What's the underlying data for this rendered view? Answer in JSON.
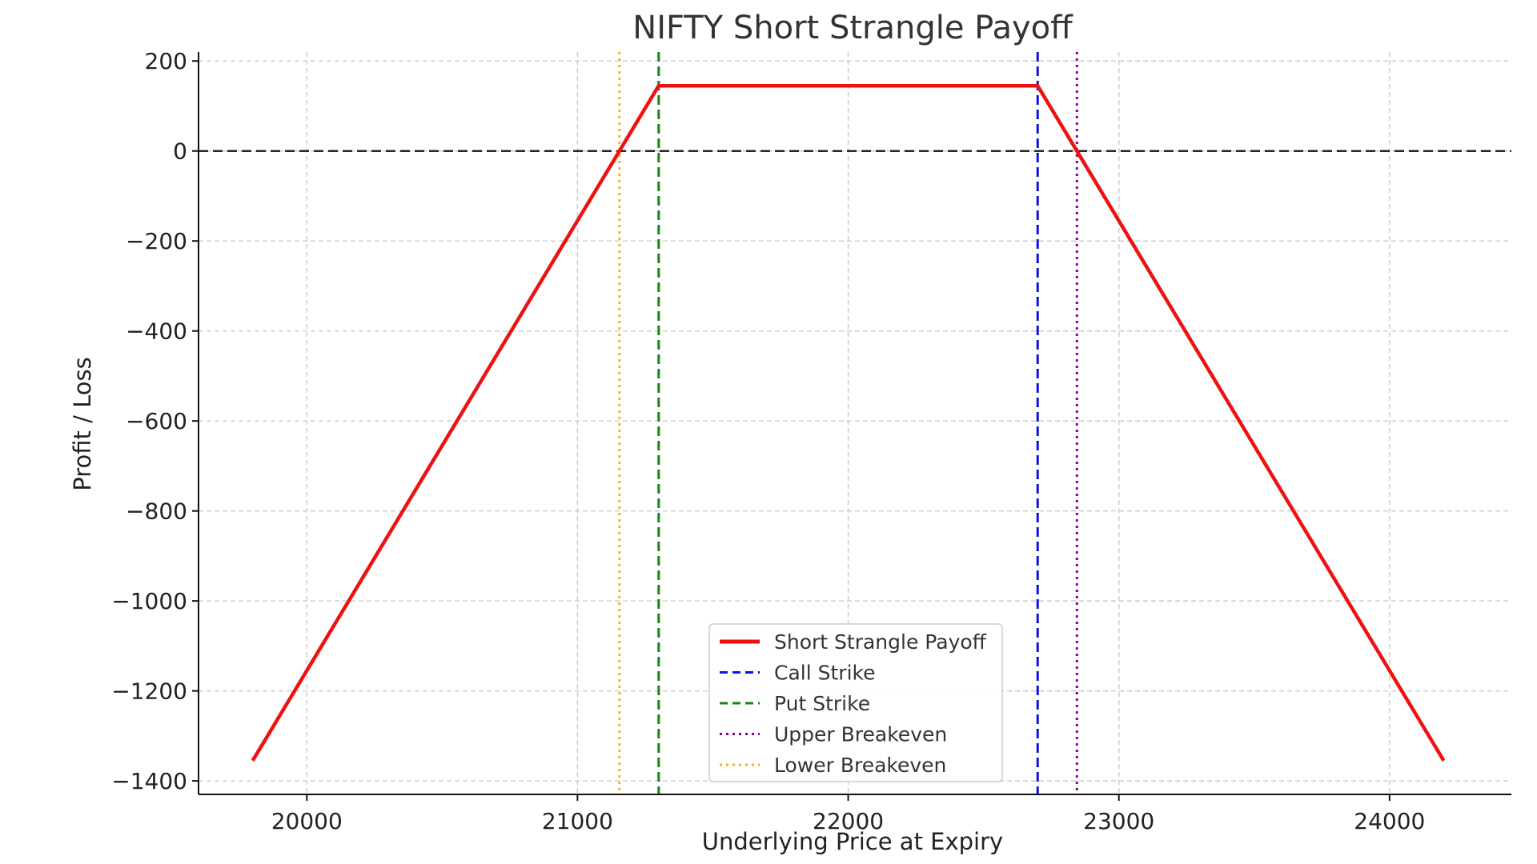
{
  "chart_data": {
    "type": "line",
    "title": "NIFTY Short Strangle Payoff",
    "xlabel": "Underlying Price at Expiry",
    "ylabel": "Profit / Loss",
    "xlim": [
      19600,
      24450
    ],
    "ylim": [
      -1430,
      220
    ],
    "xticks": [
      20000,
      21000,
      22000,
      23000,
      24000
    ],
    "xtick_labels": [
      "20000",
      "21000",
      "22000",
      "23000",
      "24000"
    ],
    "yticks": [
      200,
      0,
      -200,
      -400,
      -600,
      -800,
      -1000,
      -1200,
      -1400
    ],
    "ytick_labels": [
      "200",
      "0",
      "−200",
      "−400",
      "−600",
      "−800",
      "−1000",
      "−1200",
      "−1400"
    ],
    "grid": true,
    "legend_position": "lower-center",
    "series": [
      {
        "name": "Short Strangle Payoff",
        "style": "solid",
        "color": "#ee1111",
        "x": [
          19800,
          21300,
          22700,
          24200
        ],
        "y": [
          -1355,
          145,
          145,
          -1355
        ]
      }
    ],
    "vlines": [
      {
        "name": "Call Strike",
        "x": 22700,
        "color": "#1111dd",
        "style": "dashed"
      },
      {
        "name": "Put Strike",
        "x": 21300,
        "color": "#118811",
        "style": "dashed"
      },
      {
        "name": "Upper Breakeven",
        "x": 22845,
        "color": "#880088",
        "style": "dotted"
      },
      {
        "name": "Lower Breakeven",
        "x": 21155,
        "color": "#f5b020",
        "style": "dotted"
      }
    ],
    "hlines": [
      {
        "y": 0,
        "color": "#111111",
        "style": "dashed"
      }
    ]
  }
}
